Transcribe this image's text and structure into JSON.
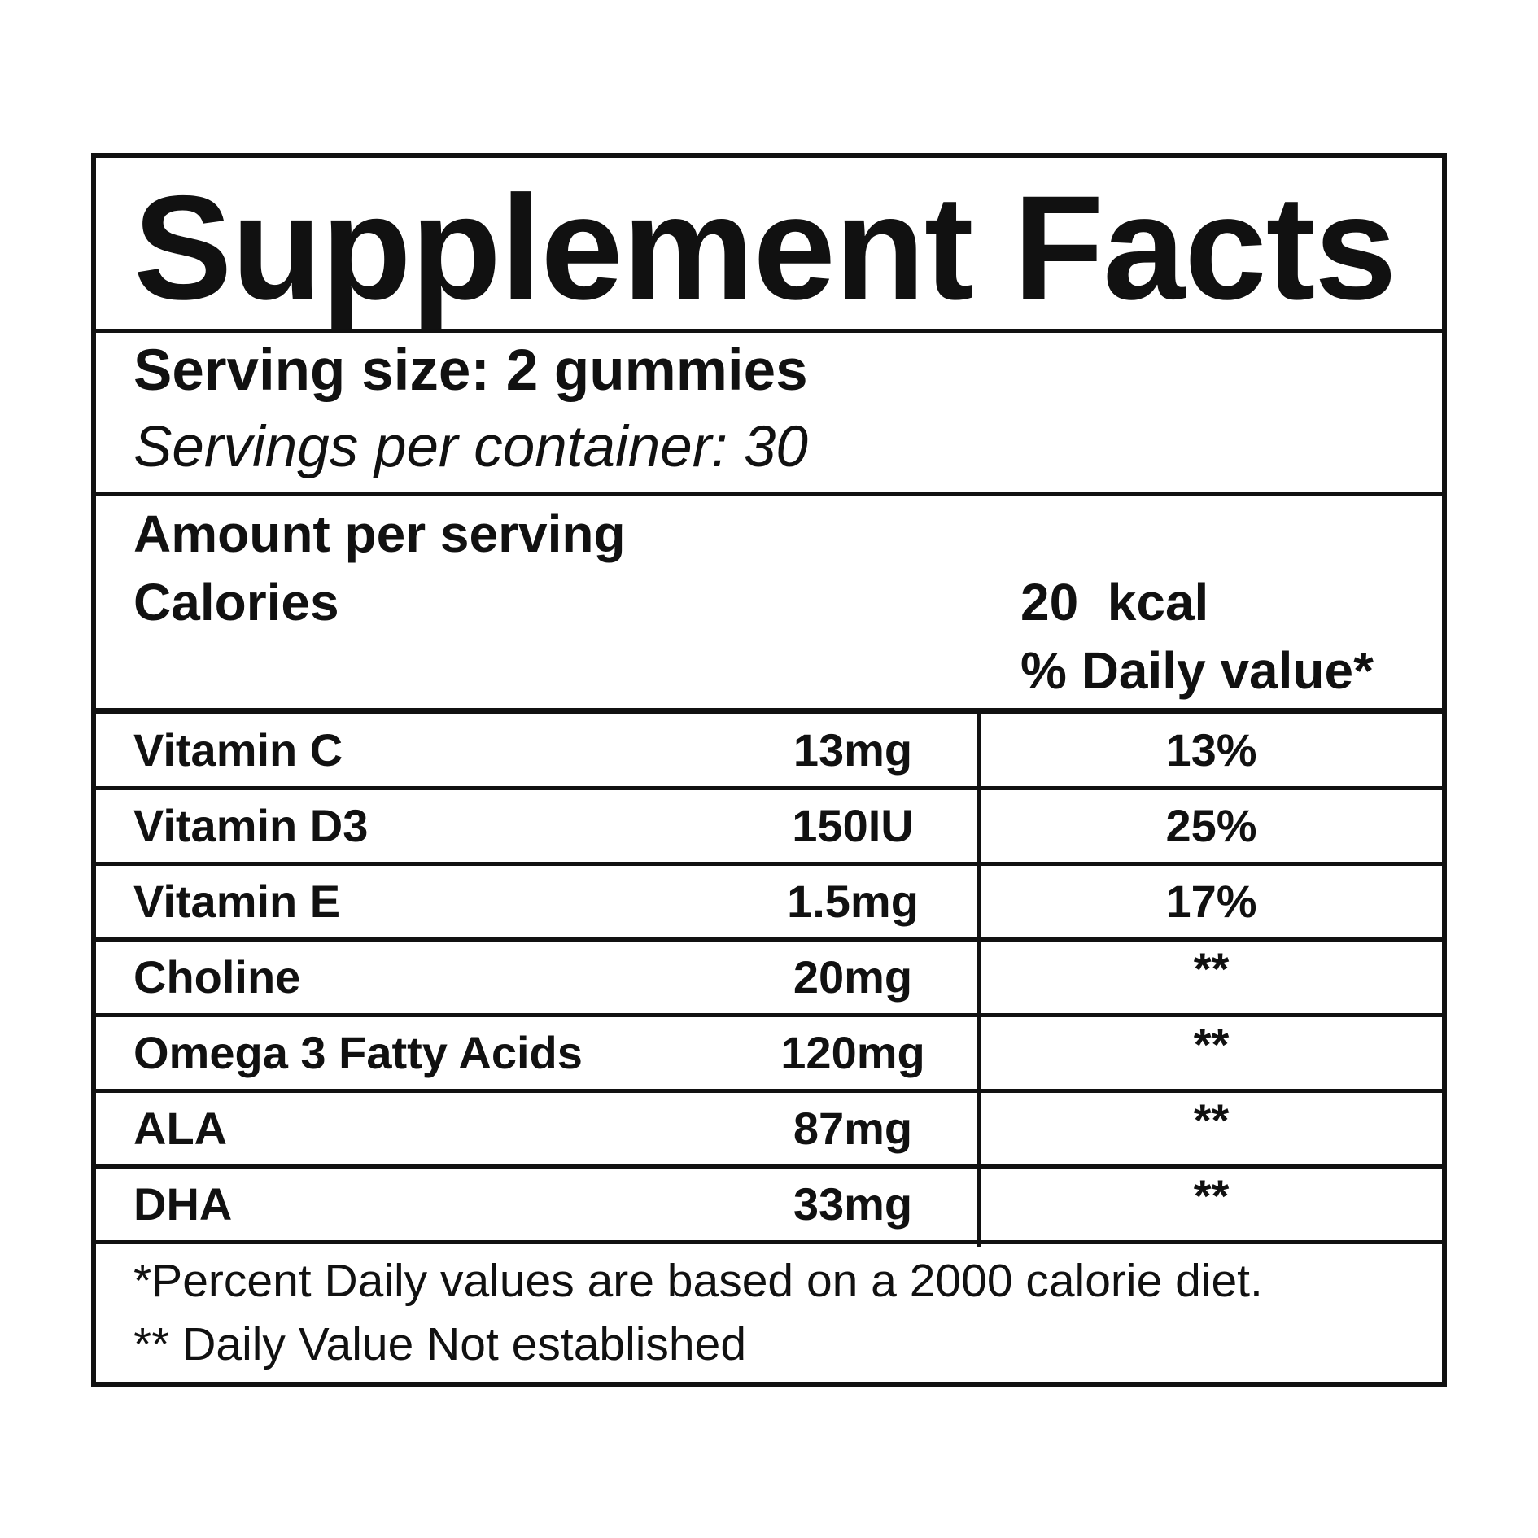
{
  "title": "Supplement Facts",
  "serving": {
    "size": "Serving size: 2 gummies",
    "per_container": "Servings per container: 30"
  },
  "amount": {
    "header": "Amount per serving",
    "calories_label": "Calories",
    "calories_value": "20  kcal",
    "dv_header": "% Daily value*"
  },
  "nutrients": [
    {
      "name": "Vitamin C",
      "amount": "13mg",
      "dv": "13%"
    },
    {
      "name": "Vitamin D3",
      "amount": "150IU",
      "dv": "25%"
    },
    {
      "name": "Vitamin E",
      "amount": "1.5mg",
      "dv": "17%"
    },
    {
      "name": "Choline",
      "amount": "20mg",
      "dv": "**"
    },
    {
      "name": "Omega 3 Fatty Acids",
      "amount": "120mg",
      "dv": "**"
    },
    {
      "name": "ALA",
      "amount": "87mg",
      "dv": "**"
    },
    {
      "name": "DHA",
      "amount": "33mg",
      "dv": "**"
    }
  ],
  "footnotes": {
    "percent": "*Percent Daily values are based on a 2000 calorie diet.",
    "not_established": "** Daily Value Not established"
  }
}
